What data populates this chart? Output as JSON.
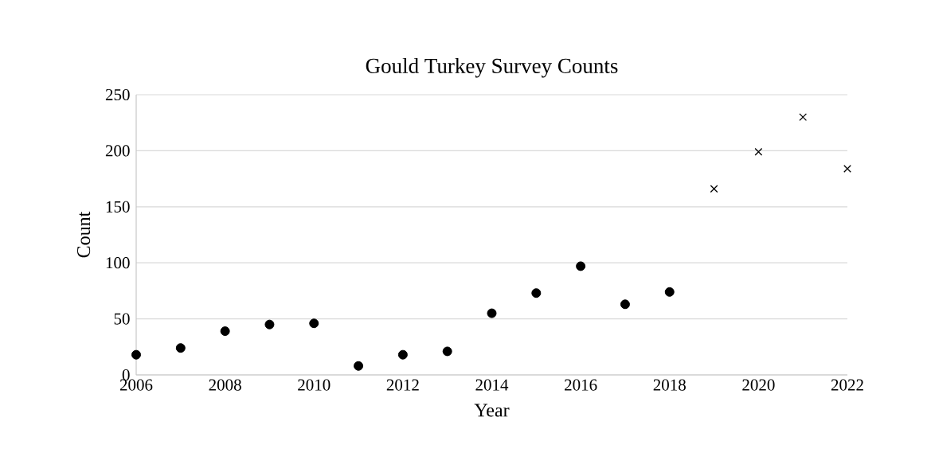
{
  "chart_data": {
    "type": "scatter",
    "title": "Gould Turkey Survey Counts",
    "xlabel": "Year",
    "ylabel": "Count",
    "xlim": [
      2006,
      2022
    ],
    "ylim": [
      0,
      250
    ],
    "xticks": [
      2006,
      2008,
      2010,
      2012,
      2014,
      2016,
      2018,
      2020,
      2022
    ],
    "yticks": [
      0,
      50,
      100,
      150,
      200,
      250
    ],
    "grid": "y",
    "series": [
      {
        "color": "#000000",
        "marker": "circle",
        "x": [
          2006,
          2007,
          2008,
          2009,
          2010,
          2011,
          2012,
          2013,
          2014,
          2015,
          2016,
          2017,
          2018
        ],
        "values": [
          18,
          24,
          39,
          45,
          46,
          8,
          18,
          21,
          55,
          73,
          97,
          63,
          74
        ]
      },
      {
        "color": "#000000",
        "marker": "cross",
        "x": [
          2019,
          2020,
          2021,
          2022
        ],
        "values": [
          166,
          199,
          230,
          184
        ]
      }
    ]
  }
}
